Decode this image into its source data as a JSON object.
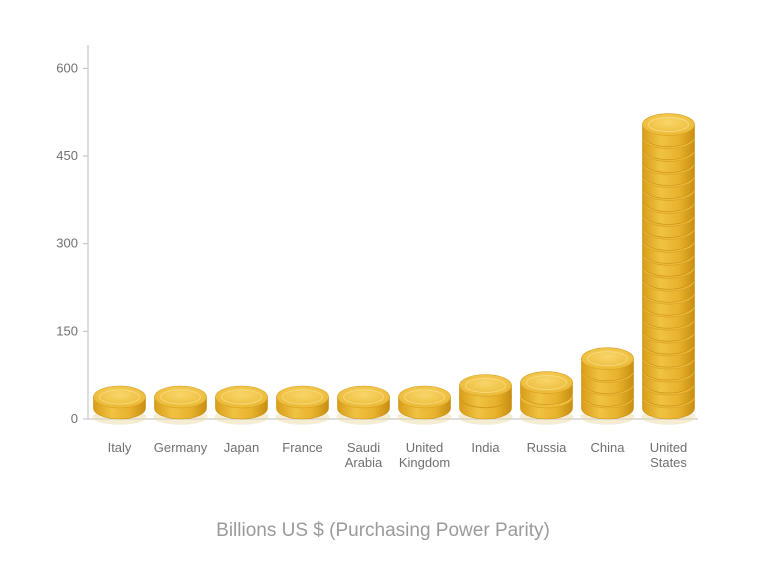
{
  "chart_data": {
    "type": "bar",
    "title": "Billions US $ (Purchasing Power Parity)",
    "categories": [
      [
        "Italy"
      ],
      [
        "Germany"
      ],
      [
        "Japan"
      ],
      [
        "France"
      ],
      [
        "Saudi",
        "Arabia"
      ],
      [
        "United",
        "Kingdom"
      ],
      [
        "India"
      ],
      [
        "Russia"
      ],
      [
        "China"
      ],
      [
        "United",
        "States"
      ]
    ],
    "values": [
      30,
      48,
      58,
      63,
      68,
      70,
      77,
      87,
      125,
      526
    ],
    "ylim": [
      0,
      640
    ],
    "yticks": [
      "0",
      "150",
      "300",
      "450",
      "600"
    ],
    "ytick_values": [
      0,
      150,
      300,
      450,
      600
    ],
    "grid": false,
    "colors": {
      "coin_top": "#f4ca4a",
      "coin_side": "#e0a820",
      "coin_edge": "#c98f12",
      "axis": "#bdbdbd"
    }
  }
}
